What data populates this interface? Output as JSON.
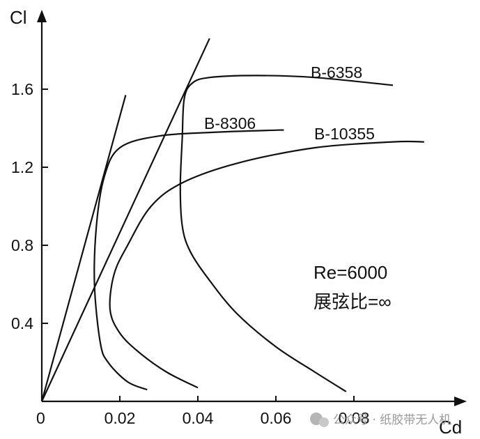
{
  "chart_data": {
    "type": "line",
    "xlabel": "Cd",
    "ylabel": "Cl",
    "xlim": [
      0,
      0.1
    ],
    "ylim": [
      0,
      1.9
    ],
    "x_ticks": [
      "0",
      "0.02",
      "0.04",
      "0.06",
      "0.08"
    ],
    "y_ticks": [
      "0.4",
      "0.8",
      "1.2",
      "1.6"
    ],
    "grid": false,
    "annotations": [
      "Re=6000",
      "展弦比=∞"
    ],
    "series": [
      {
        "name": "B-8306",
        "points": [
          [
            0.027,
            0.06
          ],
          [
            0.022,
            0.1
          ],
          [
            0.017,
            0.2
          ],
          [
            0.015,
            0.3
          ],
          [
            0.0135,
            0.6
          ],
          [
            0.014,
            0.9
          ],
          [
            0.016,
            1.15
          ],
          [
            0.02,
            1.3
          ],
          [
            0.03,
            1.36
          ],
          [
            0.045,
            1.38
          ],
          [
            0.06,
            1.39
          ],
          [
            0.062,
            1.39
          ]
        ]
      },
      {
        "name": "B-10355",
        "points": [
          [
            0.04,
            0.07
          ],
          [
            0.032,
            0.15
          ],
          [
            0.025,
            0.25
          ],
          [
            0.02,
            0.35
          ],
          [
            0.0175,
            0.47
          ],
          [
            0.0185,
            0.65
          ],
          [
            0.022,
            0.8
          ],
          [
            0.028,
            1.0
          ],
          [
            0.036,
            1.12
          ],
          [
            0.05,
            1.22
          ],
          [
            0.07,
            1.3
          ],
          [
            0.09,
            1.33
          ],
          [
            0.098,
            1.33
          ]
        ]
      },
      {
        "name": "B-6358",
        "points": [
          [
            0.078,
            0.05
          ],
          [
            0.07,
            0.15
          ],
          [
            0.06,
            0.28
          ],
          [
            0.05,
            0.45
          ],
          [
            0.043,
            0.62
          ],
          [
            0.038,
            0.77
          ],
          [
            0.036,
            0.9
          ],
          [
            0.0355,
            1.1
          ],
          [
            0.036,
            1.35
          ],
          [
            0.0365,
            1.55
          ],
          [
            0.0385,
            1.63
          ],
          [
            0.043,
            1.66
          ],
          [
            0.055,
            1.67
          ],
          [
            0.07,
            1.66
          ],
          [
            0.09,
            1.62
          ]
        ]
      }
    ],
    "tangent_lines": [
      {
        "from": [
          0,
          0
        ],
        "to": [
          0.0215,
          1.57
        ]
      },
      {
        "from": [
          0,
          0
        ],
        "to": [
          0.043,
          1.86
        ]
      }
    ]
  },
  "watermark": {
    "text": "公众号 · 纸胶带无人机"
  }
}
